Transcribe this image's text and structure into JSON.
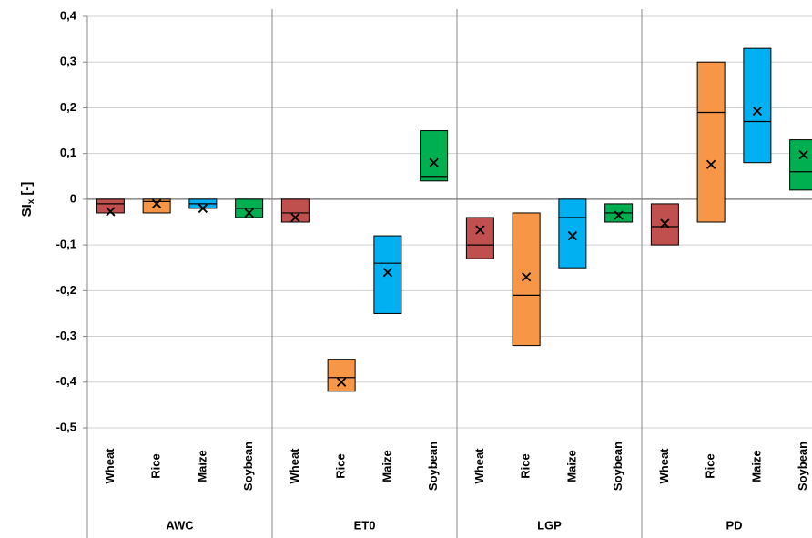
{
  "chart_data": {
    "type": "box",
    "ylabel": {
      "main": "SI",
      "sub": "x",
      "unit": "[-]"
    },
    "ylim": [
      -0.5,
      0.4
    ],
    "yticks": [
      {
        "value": -0.5,
        "label": "-0,5"
      },
      {
        "value": -0.4,
        "label": "-0,4"
      },
      {
        "value": -0.3,
        "label": "-0,3"
      },
      {
        "value": -0.2,
        "label": "-0,2"
      },
      {
        "value": -0.1,
        "label": "-0,1"
      },
      0,
      {
        "value": 0.1,
        "label": "0,1"
      },
      {
        "value": 0.2,
        "label": "0,2"
      },
      {
        "value": 0.3,
        "label": "0,3"
      },
      {
        "value": 0.4,
        "label": "0,4"
      }
    ],
    "grid": true,
    "groups": [
      {
        "name": "AWC",
        "boxes": [
          {
            "category": "Wheat",
            "color": "#c0504d",
            "low": -0.03,
            "high": 0,
            "median": -0.01,
            "mean": -0.027
          },
          {
            "category": "Rice",
            "color": "#f79646",
            "low": -0.03,
            "high": 0,
            "median": -0.005,
            "mean": -0.01
          },
          {
            "category": "Maize",
            "color": "#00b0f0",
            "low": -0.02,
            "high": 0,
            "median": -0.01,
            "mean": -0.02
          },
          {
            "category": "Soybean",
            "color": "#00b050",
            "low": -0.04,
            "high": 0,
            "median": -0.02,
            "mean": -0.03
          }
        ]
      },
      {
        "name": "ET0",
        "boxes": [
          {
            "category": "Wheat",
            "color": "#c0504d",
            "low": -0.05,
            "high": 0,
            "median": -0.03,
            "mean": -0.04
          },
          {
            "category": "Rice",
            "color": "#f79646",
            "low": -0.42,
            "high": -0.35,
            "median": -0.39,
            "mean": -0.4
          },
          {
            "category": "Maize",
            "color": "#00b0f0",
            "low": -0.25,
            "high": -0.08,
            "median": -0.14,
            "mean": -0.16
          },
          {
            "category": "Soybean",
            "color": "#00b050",
            "low": 0.04,
            "high": 0.15,
            "median": 0.05,
            "mean": 0.08
          }
        ]
      },
      {
        "name": "LGP",
        "boxes": [
          {
            "category": "Wheat",
            "color": "#c0504d",
            "low": -0.13,
            "high": -0.04,
            "median": -0.1,
            "mean": -0.067
          },
          {
            "category": "Rice",
            "color": "#f79646",
            "low": -0.32,
            "high": -0.03,
            "median": -0.21,
            "mean": -0.17
          },
          {
            "category": "Maize",
            "color": "#00b0f0",
            "low": -0.15,
            "high": 0,
            "median": -0.04,
            "mean": -0.08
          },
          {
            "category": "Soybean",
            "color": "#00b050",
            "low": -0.05,
            "high": -0.01,
            "median": -0.03,
            "mean": -0.035
          }
        ]
      },
      {
        "name": "PD",
        "boxes": [
          {
            "category": "Wheat",
            "color": "#c0504d",
            "low": -0.1,
            "high": -0.01,
            "median": -0.06,
            "mean": -0.053
          },
          {
            "category": "Rice",
            "color": "#f79646",
            "low": -0.05,
            "high": 0.3,
            "median": 0.19,
            "mean": 0.076
          },
          {
            "category": "Maize",
            "color": "#00b0f0",
            "low": 0.08,
            "high": 0.33,
            "median": 0.17,
            "mean": 0.193
          },
          {
            "category": "Soybean",
            "color": "#00b050",
            "low": 0.02,
            "high": 0.13,
            "median": 0.06,
            "mean": 0.097
          }
        ]
      }
    ]
  }
}
